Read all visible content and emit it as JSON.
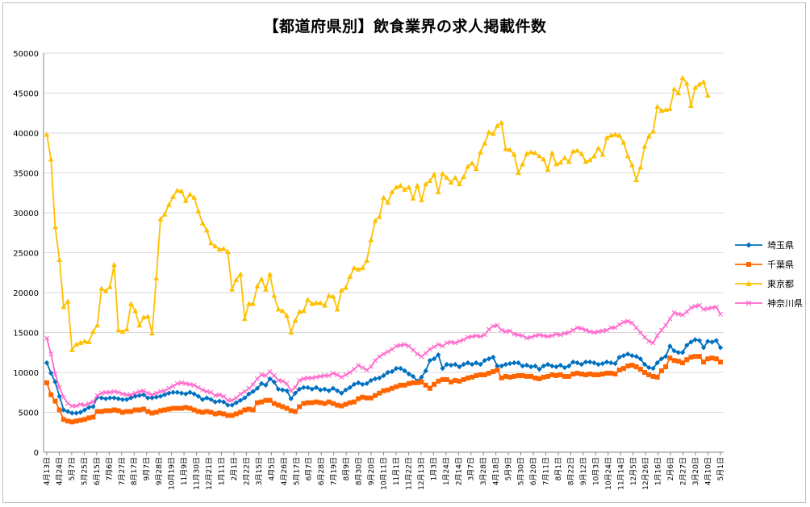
{
  "chart_data": {
    "type": "line",
    "title": "【都道府県別】飲食業界の求人掲載件数",
    "xlabel": "",
    "ylabel": "",
    "ylim": [
      0,
      50000
    ],
    "yticks": [
      "0",
      "5000",
      "10000",
      "15000",
      "20000",
      "25000",
      "30000",
      "35000",
      "40000",
      "45000",
      "50000"
    ],
    "x_tick_labels": [
      "4月13日",
      "4月24日",
      "5月7日",
      "5月25日",
      "6月15日",
      "7月6日",
      "7月27日",
      "8月17日",
      "9月7日",
      "9月28日",
      "10月19日",
      "11月9日",
      "11月30日",
      "12月21日",
      "1月11日",
      "2月1日",
      "2月22日",
      "3月15日",
      "4月5日",
      "4月26日",
      "5月17日",
      "6月7日",
      "6月28日",
      "7月19日",
      "8月9日",
      "8月30日",
      "9月20日",
      "10月11日",
      "11月1日",
      "11月22日",
      "12月13日",
      "1月3日",
      "1月24日",
      "2月14日",
      "3月7日",
      "3月28日",
      "4月18日",
      "5月9日",
      "5月30日",
      "6月20日",
      "7月11日",
      "8月1日",
      "8月22日",
      "9月12日",
      "10月3日",
      "10月24日",
      "11月14日",
      "12月5日",
      "12月26日",
      "1月16日",
      "2月6日",
      "2月27日",
      "3月20日",
      "4月10日",
      "5月1日"
    ],
    "legend_position": "right",
    "grid": true,
    "series": [
      {
        "name": "埼玉県",
        "color": "#0070C0",
        "marker": "diamond",
        "values": [
          11200,
          9900,
          8800,
          7000,
          5300,
          5100,
          4900,
          4900,
          5000,
          5300,
          5600,
          5700,
          6900,
          6800,
          6700,
          6800,
          6800,
          6700,
          6600,
          6600,
          6800,
          7000,
          7100,
          7200,
          6800,
          6800,
          6900,
          7000,
          7200,
          7400,
          7500,
          7500,
          7400,
          7300,
          7500,
          7300,
          7000,
          6600,
          6800,
          6600,
          6300,
          6400,
          6300,
          5900,
          5900,
          6200,
          6500,
          6800,
          7300,
          7600,
          8000,
          8600,
          8400,
          9200,
          8800,
          7900,
          7800,
          7700,
          6700,
          7400,
          7900,
          8100,
          8100,
          7900,
          8100,
          7800,
          7900,
          7700,
          8000,
          7700,
          7400,
          7800,
          8100,
          8500,
          8700,
          8500,
          8600,
          9000,
          9200,
          9300,
          9600,
          10000,
          10100,
          10500,
          10500,
          10200,
          9800,
          9500,
          8900,
          9400,
          10200,
          11500,
          11700,
          12200,
          10500,
          11000,
          10900,
          11000,
          10700,
          11000,
          11200,
          11000,
          11200,
          11000,
          11500,
          11700,
          11900,
          10800,
          10800,
          11000,
          11100,
          11200,
          11200,
          10800,
          10900,
          10700,
          10800,
          10400,
          10800,
          11000,
          10800,
          10700,
          10900,
          10600,
          10800,
          11300,
          11200,
          11000,
          11300,
          11300,
          11200,
          11000,
          11100,
          11300,
          11200,
          11100,
          11900,
          12100,
          12300,
          12100,
          12000,
          11700,
          11000,
          10600,
          10500,
          11200,
          11700,
          12000,
          13300,
          12700,
          12500,
          12500,
          13400,
          13800,
          14100,
          14000,
          13100,
          13900,
          13800,
          14000,
          13100
        ]
      },
      {
        "name": "千葉県",
        "color": "#FF6600",
        "marker": "square",
        "values": [
          8700,
          7200,
          6400,
          5300,
          4100,
          3900,
          3800,
          3900,
          4000,
          4100,
          4300,
          4400,
          5100,
          5100,
          5200,
          5200,
          5300,
          5200,
          5000,
          5100,
          5100,
          5300,
          5300,
          5400,
          5100,
          4900,
          5000,
          5200,
          5300,
          5400,
          5500,
          5500,
          5500,
          5600,
          5500,
          5300,
          5100,
          5000,
          5100,
          5000,
          4800,
          4900,
          4800,
          4600,
          4600,
          4800,
          5000,
          5300,
          5400,
          5300,
          6200,
          6300,
          6500,
          6500,
          6100,
          5900,
          5700,
          5500,
          5200,
          5100,
          5700,
          6100,
          6200,
          6200,
          6300,
          6200,
          6100,
          6300,
          6100,
          5900,
          5800,
          6000,
          6200,
          6300,
          6700,
          6900,
          6800,
          6800,
          7100,
          7400,
          7700,
          7800,
          8000,
          8200,
          8400,
          8400,
          8600,
          8700,
          8700,
          8800,
          8400,
          8000,
          8500,
          8900,
          9100,
          9100,
          8800,
          9000,
          8900,
          9100,
          9300,
          9400,
          9600,
          9700,
          9700,
          9900,
          10100,
          10300,
          9300,
          9500,
          9400,
          9500,
          9600,
          9600,
          9500,
          9500,
          9300,
          9200,
          9400,
          9500,
          9700,
          9600,
          9700,
          9500,
          9500,
          9800,
          9900,
          9800,
          9700,
          9800,
          9700,
          9700,
          9800,
          9900,
          9900,
          9800,
          10300,
          10500,
          10800,
          10900,
          10700,
          10400,
          10000,
          9700,
          9500,
          9400,
          10200,
          10700,
          11800,
          11500,
          11400,
          11200,
          11600,
          11900,
          12000,
          12000,
          11300,
          11700,
          11800,
          11700,
          11300
        ]
      },
      {
        "name": "東京都",
        "color": "#FFC000",
        "marker": "triangle",
        "values": [
          39800,
          36700,
          28200,
          24100,
          18200,
          18900,
          12800,
          13500,
          13700,
          13900,
          13800,
          15100,
          15900,
          20500,
          20200,
          20700,
          23500,
          15300,
          15100,
          15400,
          18600,
          17700,
          15900,
          16900,
          17000,
          14900,
          21800,
          29200,
          29800,
          31000,
          32000,
          32800,
          32700,
          31500,
          32300,
          31900,
          30200,
          28700,
          27800,
          26200,
          25800,
          25400,
          25500,
          25100,
          20400,
          21600,
          22300,
          16700,
          18600,
          18600,
          20800,
          21700,
          20400,
          22300,
          19600,
          17900,
          17700,
          17100,
          15000,
          16500,
          17600,
          17700,
          19100,
          18600,
          18700,
          18700,
          18400,
          19600,
          19500,
          17900,
          20300,
          20600,
          22000,
          23100,
          22900,
          23100,
          24000,
          26600,
          29000,
          29500,
          31900,
          31300,
          32600,
          33200,
          33400,
          32900,
          33200,
          31800,
          33400,
          31600,
          33600,
          34000,
          34800,
          32600,
          34900,
          34400,
          33800,
          34400,
          33600,
          34500,
          35800,
          36200,
          35500,
          37600,
          38700,
          40100,
          39900,
          40900,
          41300,
          38000,
          37900,
          37300,
          35000,
          36100,
          37400,
          37600,
          37500,
          37100,
          36700,
          35400,
          37500,
          36100,
          36300,
          36900,
          36400,
          37700,
          37800,
          37400,
          36400,
          36600,
          37100,
          38100,
          37300,
          39400,
          39700,
          39800,
          39700,
          38800,
          37100,
          36000,
          34100,
          35700,
          38300,
          39600,
          40200,
          43300,
          42800,
          42900,
          43000,
          45500,
          45000,
          46900,
          46200,
          43400,
          45700,
          46100,
          46400,
          44700
        ]
      },
      {
        "name": "神奈川県",
        "color": "#FF66CC",
        "marker": "x",
        "values": [
          14300,
          12300,
          9800,
          8100,
          6900,
          6100,
          5800,
          5800,
          6000,
          5900,
          6100,
          6300,
          7100,
          7400,
          7500,
          7500,
          7600,
          7500,
          7300,
          7200,
          7200,
          7400,
          7600,
          7700,
          7400,
          7200,
          7400,
          7600,
          7700,
          8000,
          8300,
          8600,
          8700,
          8600,
          8500,
          8400,
          8100,
          7800,
          7600,
          7500,
          7100,
          7200,
          7000,
          6500,
          6500,
          6800,
          7300,
          7600,
          8000,
          8500,
          9200,
          9700,
          9600,
          10100,
          9600,
          9000,
          8900,
          8600,
          7700,
          8100,
          9000,
          9200,
          9300,
          9300,
          9400,
          9500,
          9600,
          9600,
          9900,
          9700,
          9400,
          9700,
          10000,
          10400,
          10900,
          10600,
          10300,
          10700,
          11500,
          12000,
          12300,
          12600,
          12900,
          13300,
          13400,
          13500,
          13300,
          12800,
          12300,
          12000,
          12400,
          12900,
          13200,
          13500,
          13300,
          13700,
          13800,
          13700,
          13900,
          14100,
          14400,
          14500,
          14600,
          14500,
          14700,
          15400,
          15800,
          15900,
          15300,
          15100,
          15200,
          14800,
          14700,
          14600,
          14300,
          14400,
          14600,
          14700,
          14600,
          14500,
          14600,
          14800,
          14700,
          14900,
          15000,
          15300,
          15600,
          15500,
          15300,
          15100,
          15000,
          15100,
          15200,
          15300,
          15600,
          15600,
          16000,
          16300,
          16400,
          16200,
          15600,
          15000,
          14400,
          13900,
          13700,
          14600,
          15300,
          15900,
          16700,
          17500,
          17300,
          17200,
          17600,
          18100,
          18300,
          18400,
          17900,
          18000,
          18100,
          18200,
          17300
        ]
      }
    ]
  }
}
